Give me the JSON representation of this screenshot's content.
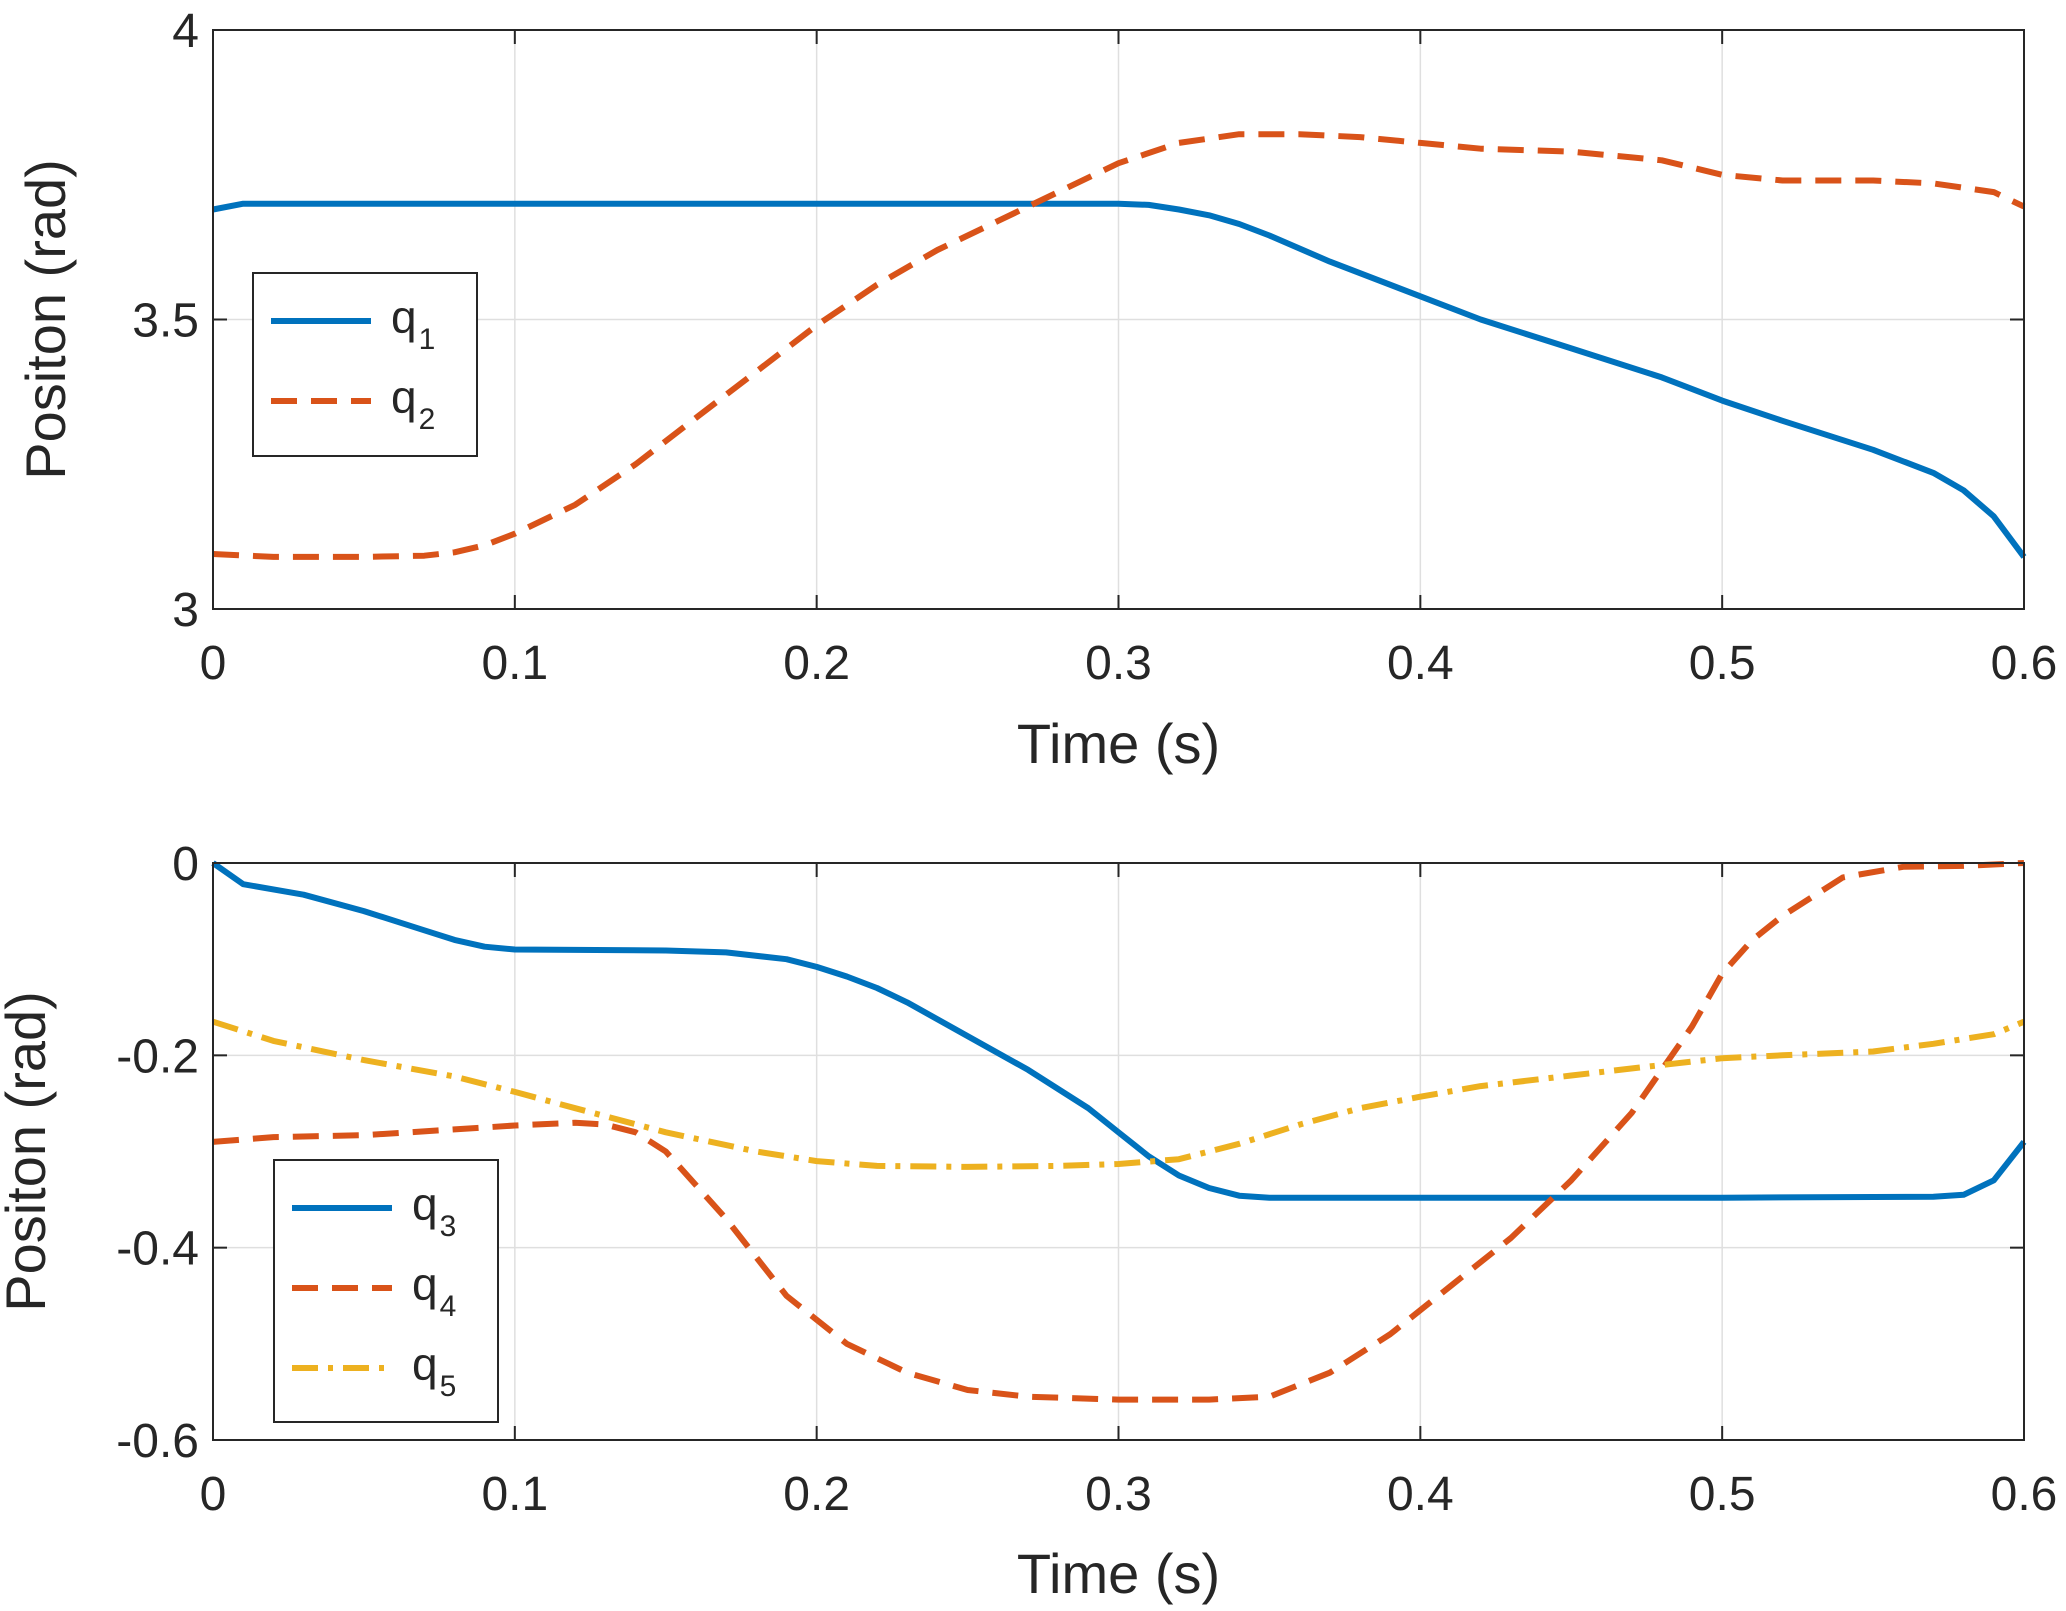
{
  "chart_data": [
    {
      "type": "line",
      "xlabel": "Time (s)",
      "ylabel": "Positon (rad)",
      "xlim": [
        0,
        0.6
      ],
      "ylim": [
        3,
        4
      ],
      "xticks": [
        "0",
        "0.1",
        "0.2",
        "0.3",
        "0.4",
        "0.5",
        "0.6"
      ],
      "yticks": [
        "3",
        "3.5",
        "4"
      ],
      "ytick_values": [
        3,
        3.5,
        4
      ],
      "grid": true,
      "legend_position": "left",
      "series": [
        {
          "name": "q1",
          "base": "q",
          "sub": "1",
          "color": "#0072BD",
          "style": "solid",
          "x": [
            0,
            0.01,
            0.05,
            0.1,
            0.2,
            0.25,
            0.28,
            0.3,
            0.31,
            0.32,
            0.33,
            0.34,
            0.35,
            0.37,
            0.4,
            0.42,
            0.45,
            0.48,
            0.5,
            0.52,
            0.55,
            0.57,
            0.58,
            0.59,
            0.6
          ],
          "values": [
            3.69,
            3.7,
            3.7,
            3.7,
            3.7,
            3.7,
            3.7,
            3.7,
            3.698,
            3.69,
            3.68,
            3.665,
            3.645,
            3.6,
            3.54,
            3.5,
            3.45,
            3.4,
            3.36,
            3.325,
            3.275,
            3.235,
            3.205,
            3.16,
            3.09
          ]
        },
        {
          "name": "q2",
          "base": "q",
          "sub": "2",
          "color": "#D95319",
          "style": "dashed",
          "x": [
            0,
            0.02,
            0.05,
            0.07,
            0.08,
            0.09,
            0.1,
            0.12,
            0.14,
            0.16,
            0.18,
            0.2,
            0.22,
            0.24,
            0.26,
            0.28,
            0.3,
            0.32,
            0.34,
            0.36,
            0.38,
            0.4,
            0.42,
            0.45,
            0.48,
            0.5,
            0.52,
            0.55,
            0.57,
            0.59,
            0.6
          ],
          "values": [
            3.095,
            3.09,
            3.09,
            3.092,
            3.098,
            3.11,
            3.13,
            3.18,
            3.25,
            3.33,
            3.41,
            3.49,
            3.56,
            3.62,
            3.67,
            3.72,
            3.77,
            3.805,
            3.82,
            3.82,
            3.815,
            3.805,
            3.795,
            3.79,
            3.775,
            3.75,
            3.74,
            3.74,
            3.735,
            3.72,
            3.695
          ]
        }
      ]
    },
    {
      "type": "line",
      "xlabel": "Time (s)",
      "ylabel": "Positon (rad)",
      "xlim": [
        0,
        0.6
      ],
      "ylim": [
        -0.6,
        0
      ],
      "xticks": [
        "0",
        "0.1",
        "0.2",
        "0.3",
        "0.4",
        "0.5",
        "0.6"
      ],
      "yticks": [
        "-0.6",
        "-0.4",
        "-0.2",
        "0"
      ],
      "ytick_values": [
        -0.6,
        -0.4,
        -0.2,
        0
      ],
      "grid": true,
      "legend_position": "bottom-left",
      "series": [
        {
          "name": "q3",
          "base": "q",
          "sub": "3",
          "color": "#0072BD",
          "style": "solid",
          "x": [
            0,
            0.01,
            0.03,
            0.05,
            0.07,
            0.08,
            0.09,
            0.1,
            0.15,
            0.17,
            0.19,
            0.2,
            0.21,
            0.22,
            0.23,
            0.25,
            0.27,
            0.29,
            0.3,
            0.31,
            0.32,
            0.33,
            0.34,
            0.35,
            0.4,
            0.5,
            0.57,
            0.58,
            0.59,
            0.6
          ],
          "values": [
            0,
            -0.022,
            -0.033,
            -0.05,
            -0.07,
            -0.08,
            -0.087,
            -0.09,
            -0.091,
            -0.093,
            -0.1,
            -0.108,
            -0.118,
            -0.13,
            -0.145,
            -0.18,
            -0.215,
            -0.255,
            -0.28,
            -0.305,
            -0.325,
            -0.338,
            -0.346,
            -0.348,
            -0.348,
            -0.348,
            -0.347,
            -0.345,
            -0.33,
            -0.29
          ]
        },
        {
          "name": "q4",
          "base": "q",
          "sub": "4",
          "color": "#D95319",
          "style": "dashed",
          "x": [
            0,
            0.02,
            0.05,
            0.08,
            0.1,
            0.12,
            0.13,
            0.14,
            0.15,
            0.17,
            0.19,
            0.21,
            0.23,
            0.25,
            0.27,
            0.3,
            0.33,
            0.35,
            0.37,
            0.39,
            0.41,
            0.43,
            0.45,
            0.47,
            0.49,
            0.5,
            0.51,
            0.52,
            0.54,
            0.56,
            0.58,
            0.6
          ],
          "values": [
            -0.29,
            -0.285,
            -0.283,
            -0.277,
            -0.273,
            -0.27,
            -0.272,
            -0.28,
            -0.3,
            -0.37,
            -0.45,
            -0.5,
            -0.53,
            -0.548,
            -0.555,
            -0.558,
            -0.558,
            -0.555,
            -0.53,
            -0.49,
            -0.44,
            -0.39,
            -0.33,
            -0.26,
            -0.17,
            -0.115,
            -0.08,
            -0.055,
            -0.015,
            -0.004,
            -0.003,
            0
          ]
        },
        {
          "name": "q5",
          "base": "q",
          "sub": "5",
          "color": "#EDB120",
          "style": "dashdot",
          "x": [
            0,
            0.02,
            0.05,
            0.08,
            0.1,
            0.12,
            0.15,
            0.18,
            0.2,
            0.22,
            0.25,
            0.28,
            0.3,
            0.32,
            0.34,
            0.36,
            0.38,
            0.4,
            0.42,
            0.45,
            0.48,
            0.5,
            0.52,
            0.55,
            0.57,
            0.59,
            0.6
          ],
          "values": [
            -0.165,
            -0.185,
            -0.205,
            -0.222,
            -0.238,
            -0.255,
            -0.28,
            -0.3,
            -0.31,
            -0.315,
            -0.316,
            -0.315,
            -0.313,
            -0.308,
            -0.292,
            -0.272,
            -0.255,
            -0.243,
            -0.232,
            -0.221,
            -0.21,
            -0.203,
            -0.2,
            -0.196,
            -0.188,
            -0.178,
            -0.165
          ]
        }
      ]
    }
  ]
}
